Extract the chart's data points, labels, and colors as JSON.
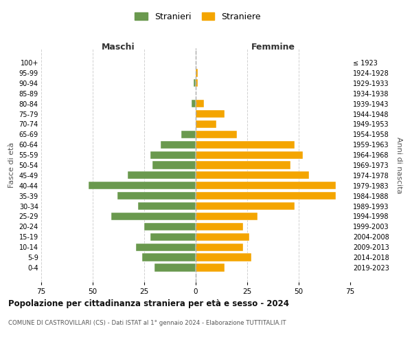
{
  "age_groups": [
    "0-4",
    "5-9",
    "10-14",
    "15-19",
    "20-24",
    "25-29",
    "30-34",
    "35-39",
    "40-44",
    "45-49",
    "50-54",
    "55-59",
    "60-64",
    "65-69",
    "70-74",
    "75-79",
    "80-84",
    "85-89",
    "90-94",
    "95-99",
    "100+"
  ],
  "birth_years": [
    "2019-2023",
    "2014-2018",
    "2009-2013",
    "2004-2008",
    "1999-2003",
    "1994-1998",
    "1989-1993",
    "1984-1988",
    "1979-1983",
    "1974-1978",
    "1969-1973",
    "1964-1968",
    "1959-1963",
    "1954-1958",
    "1949-1953",
    "1944-1948",
    "1939-1943",
    "1934-1938",
    "1929-1933",
    "1924-1928",
    "≤ 1923"
  ],
  "maschi": [
    20,
    26,
    29,
    22,
    25,
    41,
    28,
    38,
    52,
    33,
    21,
    22,
    17,
    7,
    0,
    0,
    2,
    0,
    1,
    0,
    0
  ],
  "femmine": [
    14,
    27,
    23,
    26,
    23,
    30,
    48,
    68,
    68,
    55,
    46,
    52,
    48,
    20,
    10,
    14,
    4,
    0,
    1,
    1,
    0
  ],
  "maschi_color": "#6a994e",
  "femmine_color": "#f4a500",
  "background_color": "#ffffff",
  "grid_color": "#cccccc",
  "title": "Popolazione per cittadinanza straniera per età e sesso - 2024",
  "subtitle": "COMUNE DI CASTROVILLARI (CS) - Dati ISTAT al 1° gennaio 2024 - Elaborazione TUTTITALIA.IT",
  "xlabel_left": "Maschi",
  "xlabel_right": "Femmine",
  "ylabel_left": "Fasce di età",
  "ylabel_right": "Anni di nascita",
  "legend_stranieri": "Stranieri",
  "legend_straniere": "Straniere",
  "xlim": 75
}
